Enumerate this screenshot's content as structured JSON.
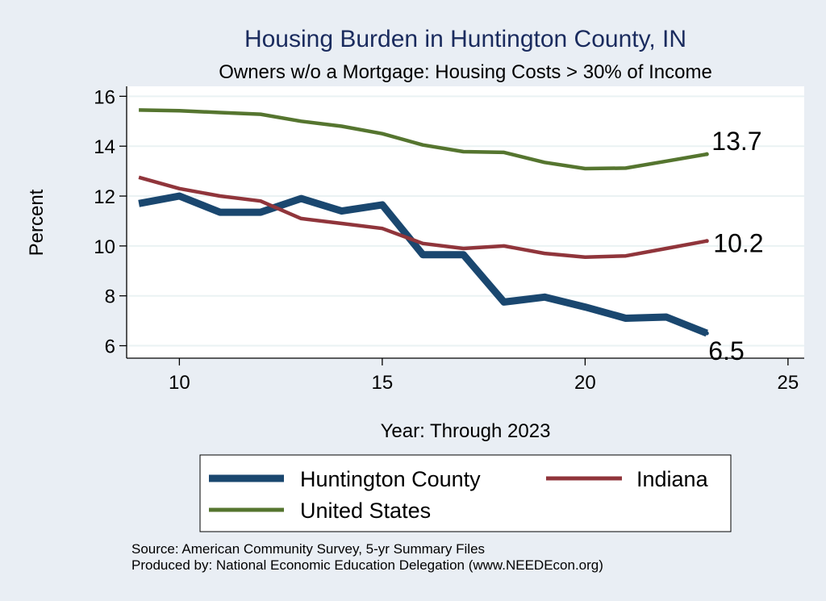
{
  "chart_data": {
    "type": "line",
    "title": "Housing Burden in Huntington County, IN",
    "subtitle": "Owners w/o a Mortgage: Housing Costs > 30% of Income",
    "xlabel": "Year: Through 2023",
    "ylabel": "Percent",
    "xlim": [
      8.7,
      25.4
    ],
    "ylim": [
      5.5,
      16.4
    ],
    "x_ticks": [
      10,
      15,
      20,
      25
    ],
    "y_ticks": [
      6,
      8,
      10,
      12,
      14,
      16
    ],
    "grid": true,
    "legend_position": "bottom",
    "x": [
      9,
      10,
      11,
      12,
      13,
      14,
      15,
      16,
      17,
      18,
      19,
      20,
      21,
      22,
      23
    ],
    "series": [
      {
        "name": "Huntington County",
        "color": "#1a476f",
        "values": [
          11.7,
          12.0,
          11.35,
          11.35,
          11.9,
          11.4,
          11.65,
          9.65,
          9.65,
          7.75,
          7.95,
          7.55,
          7.1,
          7.15,
          6.5
        ],
        "end_label": "6.5"
      },
      {
        "name": "Indiana",
        "color": "#90353b",
        "values": [
          12.75,
          12.3,
          12.0,
          11.8,
          11.1,
          10.9,
          10.7,
          10.1,
          9.9,
          10.0,
          9.7,
          9.55,
          9.6,
          9.9,
          10.2
        ],
        "end_label": "10.2"
      },
      {
        "name": "United States",
        "color": "#55752f",
        "values": [
          15.45,
          15.42,
          15.35,
          15.28,
          15.0,
          14.8,
          14.5,
          14.05,
          13.78,
          13.75,
          13.35,
          13.1,
          13.12,
          13.4,
          13.68
        ],
        "end_label": "13.7"
      }
    ]
  },
  "source": {
    "line1": "Source: American Community Survey, 5-yr Summary Files",
    "line2": "Produced by: National Economic Education Delegation (www.NEEDEcon.org)"
  }
}
